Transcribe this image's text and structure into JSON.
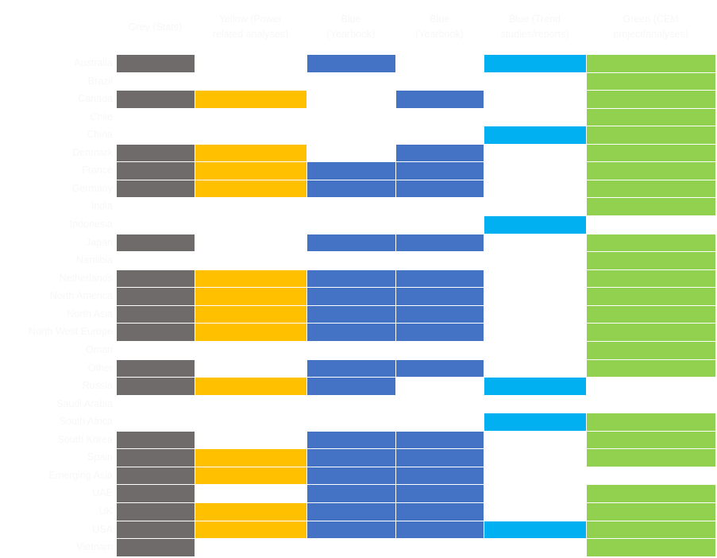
{
  "chart_data": {
    "type": "table",
    "columns": [
      {
        "label": "Grey (Stats)",
        "color": "#706b6b"
      },
      {
        "label": "Yellow (Power\nrelated analyses)",
        "color": "#ffc000"
      },
      {
        "label": "Blue\n(Yearbook)",
        "color": "#4472c4"
      },
      {
        "label": "Blue\n(Yearbook)",
        "color": "#4472c4"
      },
      {
        "label": "Blue (Trend\nstudies/reports)",
        "color": "#00b0f0"
      },
      {
        "label": "Green (CEM\nproject/analyses)",
        "color": "#92d050"
      }
    ],
    "rows": [
      {
        "label": "Australia",
        "cells": [
          1,
          0,
          1,
          0,
          1,
          1
        ]
      },
      {
        "label": "Brazil",
        "cells": [
          0,
          0,
          0,
          0,
          0,
          1
        ]
      },
      {
        "label": "Canada",
        "cells": [
          1,
          1,
          0,
          1,
          0,
          1
        ]
      },
      {
        "label": "Chile",
        "cells": [
          0,
          0,
          0,
          0,
          0,
          1
        ]
      },
      {
        "label": "China",
        "cells": [
          0,
          0,
          0,
          0,
          1,
          1
        ]
      },
      {
        "label": "Denmark",
        "cells": [
          1,
          1,
          0,
          1,
          0,
          1
        ]
      },
      {
        "label": "France",
        "cells": [
          1,
          1,
          1,
          1,
          0,
          1
        ]
      },
      {
        "label": "Germany",
        "cells": [
          1,
          1,
          1,
          1,
          0,
          1
        ]
      },
      {
        "label": "India",
        "cells": [
          0,
          0,
          0,
          0,
          0,
          1
        ]
      },
      {
        "label": "Indonesia",
        "cells": [
          0,
          0,
          0,
          0,
          1,
          0
        ]
      },
      {
        "label": "Japan",
        "cells": [
          1,
          0,
          1,
          1,
          0,
          1
        ]
      },
      {
        "label": "Namibia",
        "cells": [
          0,
          0,
          0,
          0,
          0,
          1
        ]
      },
      {
        "label": "Netherlands",
        "cells": [
          1,
          1,
          1,
          1,
          0,
          1
        ]
      },
      {
        "label": "North America",
        "cells": [
          1,
          1,
          1,
          1,
          0,
          1
        ]
      },
      {
        "label": "North Asia",
        "cells": [
          1,
          1,
          1,
          1,
          0,
          1
        ]
      },
      {
        "label": "North West Europe",
        "cells": [
          1,
          1,
          1,
          1,
          0,
          1
        ]
      },
      {
        "label": "Oman",
        "cells": [
          0,
          0,
          0,
          0,
          0,
          1
        ]
      },
      {
        "label": "Other",
        "cells": [
          1,
          0,
          1,
          1,
          0,
          1
        ]
      },
      {
        "label": "Russia",
        "cells": [
          1,
          1,
          1,
          0,
          1,
          0
        ]
      },
      {
        "label": "Saudi Arabia",
        "cells": [
          0,
          0,
          0,
          0,
          0,
          0
        ]
      },
      {
        "label": "South Africa",
        "cells": [
          0,
          0,
          0,
          0,
          1,
          1
        ]
      },
      {
        "label": "South Korea",
        "cells": [
          1,
          0,
          1,
          1,
          0,
          1
        ]
      },
      {
        "label": "Spain",
        "cells": [
          1,
          1,
          1,
          1,
          0,
          1
        ]
      },
      {
        "label": "Emerging Asia",
        "cells": [
          1,
          1,
          1,
          1,
          0,
          0
        ]
      },
      {
        "label": "UAE",
        "cells": [
          1,
          0,
          1,
          1,
          0,
          1
        ]
      },
      {
        "label": "UK",
        "cells": [
          1,
          1,
          1,
          1,
          0,
          1
        ]
      },
      {
        "label": "USA",
        "cells": [
          1,
          1,
          1,
          1,
          1,
          1
        ]
      },
      {
        "label": "Vietnam",
        "cells": [
          1,
          0,
          0,
          0,
          0,
          1
        ]
      }
    ]
  }
}
